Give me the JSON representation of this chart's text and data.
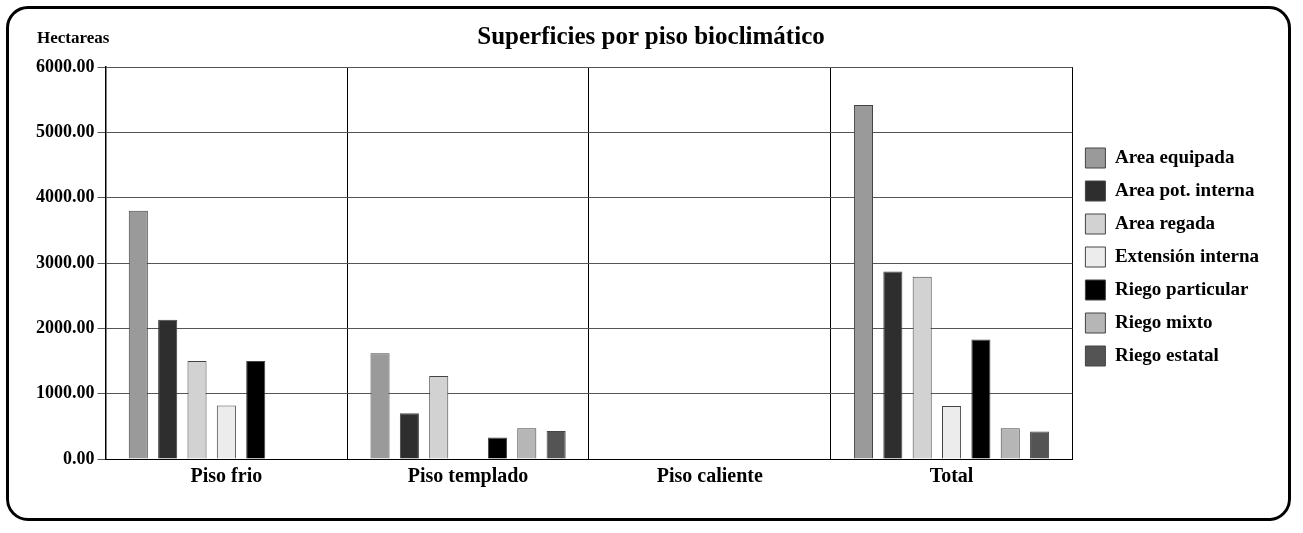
{
  "chart_data": {
    "type": "bar",
    "title": "Superficies por piso bioclimático",
    "ylabel": "Hectareas",
    "categories": [
      "Piso frio",
      "Piso templado",
      "Piso caliente",
      "Total"
    ],
    "series": [
      {
        "name": "Area equipada",
        "color": "#9a9a9a",
        "values": [
          3800,
          1620,
          null,
          5420
        ]
      },
      {
        "name": "Area pot. interna",
        "color": "#2e2e2e",
        "values": [
          2130,
          700,
          null,
          2870
        ]
      },
      {
        "name": "Area regada",
        "color": "#d2d2d2",
        "values": [
          1500,
          1270,
          null,
          2790
        ]
      },
      {
        "name": "Extensión interna",
        "color": "#ececec",
        "values": [
          820,
          null,
          null,
          810
        ]
      },
      {
        "name": "Riego particular",
        "color": "#000000",
        "values": [
          1500,
          330,
          null,
          1830
        ]
      },
      {
        "name": "Riego mixto",
        "color": "#b6b6b6",
        "values": [
          null,
          470,
          null,
          470
        ]
      },
      {
        "name": "Riego estatal",
        "color": "#545454",
        "values": [
          null,
          430,
          null,
          420
        ]
      }
    ],
    "ylim": [
      0,
      6000
    ],
    "yticks": [
      {
        "value": 0,
        "label": "0.00"
      },
      {
        "value": 1000,
        "label": "1000.00"
      },
      {
        "value": 2000,
        "label": "2000.00"
      },
      {
        "value": 3000,
        "label": "3000.00"
      },
      {
        "value": 4000,
        "label": "4000.00"
      },
      {
        "value": 5000,
        "label": "5000.00"
      },
      {
        "value": 6000,
        "label": "6000.00"
      }
    ],
    "grid": true,
    "legend": "right"
  }
}
